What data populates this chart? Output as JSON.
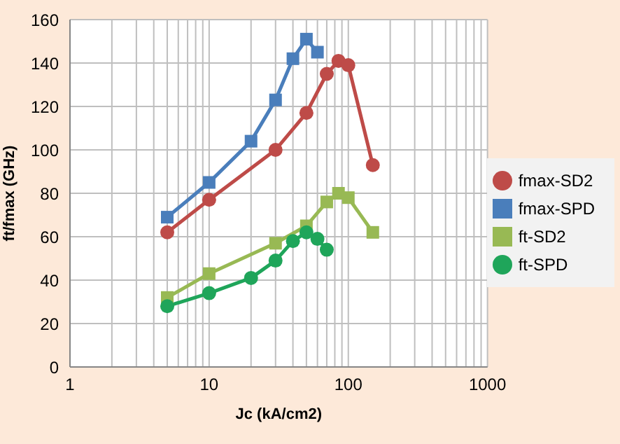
{
  "chart_data": {
    "type": "line",
    "xlabel": "Jc (kA/cm2)",
    "ylabel": "ft/fmax (GHz)",
    "log": "x",
    "xlim": [
      1,
      1000
    ],
    "xticks": [
      1,
      10,
      100,
      1000
    ],
    "ylim": [
      0,
      160
    ],
    "yticks": [
      0,
      20,
      40,
      60,
      80,
      100,
      120,
      140,
      160
    ],
    "grid": true,
    "legend": "right",
    "line_style": "solid",
    "series": [
      {
        "name": "fmax-SPD",
        "color": "#4a7ebb",
        "marker": "square",
        "x": [
          5,
          10,
          20,
          30,
          40,
          50,
          60
        ],
        "values": [
          69,
          85,
          104,
          123,
          142,
          151,
          145
        ]
      },
      {
        "name": "fmax-SD2",
        "color": "#be4b48",
        "marker": "circle",
        "x": [
          5,
          10,
          30,
          50,
          70,
          85,
          100,
          150
        ],
        "values": [
          62,
          77,
          100,
          117,
          135,
          141,
          139,
          93
        ]
      },
      {
        "name": "ft-SD2",
        "color": "#98b954",
        "marker": "square",
        "x": [
          5,
          10,
          30,
          50,
          70,
          85,
          100,
          150
        ],
        "values": [
          32,
          43,
          57,
          65,
          76,
          80,
          78,
          62
        ]
      },
      {
        "name": "ft-SPD",
        "color": "#1fa55a",
        "marker": "circle",
        "x": [
          5,
          10,
          20,
          30,
          40,
          50,
          60,
          70
        ],
        "values": [
          28,
          34,
          41,
          49,
          58,
          62,
          59,
          54
        ]
      }
    ]
  }
}
